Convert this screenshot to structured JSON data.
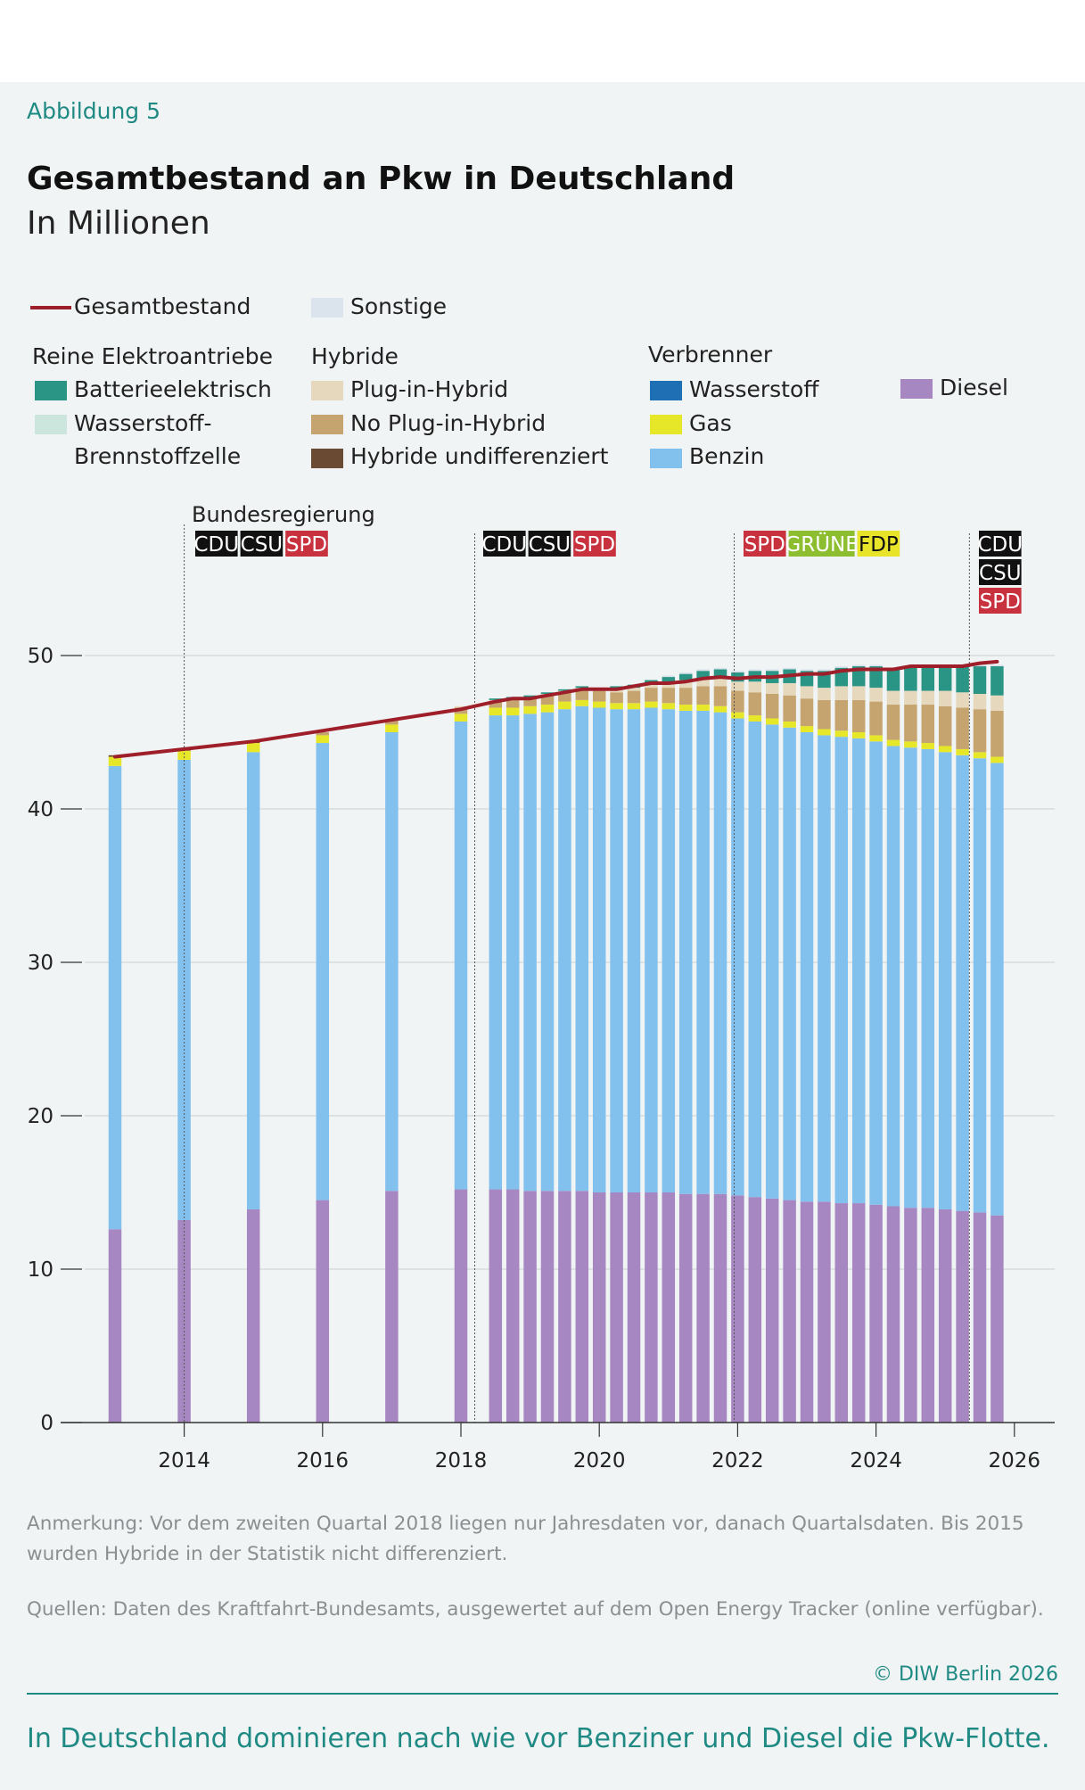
{
  "header": {
    "figure_label": "Abbildung 5",
    "title": "Gesamtbestand an Pkw in Deutschland",
    "subtitle": "In Millionen"
  },
  "legend": {
    "total_label": "Gesamtbestand",
    "other_label": "Sonstige",
    "groups": [
      {
        "title": "Reine Elektroantriebe",
        "items": [
          "Batterieelektrisch",
          "Wasserstoff-",
          "Brennstoffzelle"
        ]
      },
      {
        "title": "Hybride",
        "items": [
          "Plug-in-Hybrid",
          "No Plug-in-Hybrid",
          "Hybride undifferenziert"
        ]
      },
      {
        "title": "Verbrenner",
        "items": [
          "Wasserstoff",
          "Gas",
          "Benzin"
        ]
      },
      {
        "title": "",
        "items": [
          "Diesel"
        ]
      }
    ]
  },
  "colors": {
    "total": "#9e1f2a",
    "sonstige": "#dbe3ec",
    "batterie": "#2a9485",
    "brennstoff": "#cde6dd",
    "plugin": "#e6d8bd",
    "noplugin": "#c6a46f",
    "hybrid_undiff": "#6b4a33",
    "wasserstoff": "#1f6fb5",
    "gas": "#e7e72a",
    "benzin": "#82c0ee",
    "diesel": "#a787c1",
    "party_black": "#111111",
    "party_red": "#c8323e",
    "party_green": "#8cbe2f",
    "party_yellow": "#e8e42a"
  },
  "government": {
    "title": "Bundesregierung",
    "periods": [
      {
        "parties": [
          "CDU",
          "CSU",
          "SPD"
        ]
      },
      {
        "parties": [
          "CDU",
          "CSU",
          "SPD"
        ]
      },
      {
        "parties": [
          "SPD",
          "GRÜNE",
          "FDP"
        ]
      },
      {
        "parties": [
          "CDU",
          "CSU",
          "SPD"
        ]
      }
    ]
  },
  "chart_data": {
    "type": "bar",
    "stacked": true,
    "title": "Gesamtbestand an Pkw in Deutschland",
    "ylabel": "In Millionen",
    "ylim": [
      0,
      50
    ],
    "yticks": [
      0,
      10,
      20,
      30,
      40,
      50
    ],
    "xlim": [
      2012.8,
      2026.4
    ],
    "xticks": [
      2014,
      2016,
      2018,
      2020,
      2022,
      2024,
      2026
    ],
    "government_changes": [
      2014.0,
      2018.2,
      2021.95,
      2025.35
    ],
    "series_order": [
      "diesel",
      "benzin",
      "gas",
      "wasserstoff",
      "hybrid_undiff",
      "noplugin",
      "plugin",
      "brennstoff",
      "batterie",
      "sonstige"
    ],
    "x": [
      2013.0,
      2014.0,
      2015.0,
      2016.0,
      2017.0,
      2018.0,
      2018.5,
      2018.75,
      2019.0,
      2019.25,
      2019.5,
      2019.75,
      2020.0,
      2020.25,
      2020.5,
      2020.75,
      2021.0,
      2021.25,
      2021.5,
      2021.75,
      2022.0,
      2022.25,
      2022.5,
      2022.75,
      2023.0,
      2023.25,
      2023.5,
      2023.75,
      2024.0,
      2024.25,
      2024.5,
      2024.75,
      2025.0,
      2025.25,
      2025.5,
      2025.75
    ],
    "series": [
      {
        "key": "diesel",
        "name": "Diesel",
        "values": [
          12.6,
          13.2,
          13.9,
          14.5,
          15.1,
          15.2,
          15.2,
          15.2,
          15.1,
          15.1,
          15.1,
          15.1,
          15.0,
          15.0,
          15.0,
          15.0,
          15.0,
          14.9,
          14.9,
          14.9,
          14.8,
          14.7,
          14.6,
          14.5,
          14.4,
          14.4,
          14.3,
          14.3,
          14.2,
          14.1,
          14.0,
          14.0,
          13.9,
          13.8,
          13.7,
          13.5
        ]
      },
      {
        "key": "benzin",
        "name": "Benzin",
        "values": [
          30.2,
          30.0,
          29.8,
          29.8,
          29.9,
          30.5,
          30.9,
          30.9,
          31.1,
          31.2,
          31.4,
          31.6,
          31.6,
          31.5,
          31.5,
          31.6,
          31.5,
          31.5,
          31.5,
          31.4,
          31.1,
          31.0,
          30.9,
          30.8,
          30.6,
          30.4,
          30.4,
          30.3,
          30.2,
          30.0,
          30.0,
          29.9,
          29.8,
          29.7,
          29.6,
          29.5
        ]
      },
      {
        "key": "gas",
        "name": "Gas",
        "values": [
          0.6,
          0.6,
          0.6,
          0.5,
          0.5,
          0.5,
          0.5,
          0.5,
          0.5,
          0.5,
          0.5,
          0.4,
          0.4,
          0.4,
          0.4,
          0.4,
          0.4,
          0.4,
          0.4,
          0.4,
          0.4,
          0.4,
          0.4,
          0.4,
          0.4,
          0.4,
          0.4,
          0.4,
          0.4,
          0.4,
          0.4,
          0.4,
          0.4,
          0.4,
          0.4,
          0.4
        ]
      },
      {
        "key": "wasserstoff",
        "name": "Wasserstoff",
        "values": [
          0,
          0,
          0,
          0,
          0,
          0,
          0,
          0,
          0,
          0,
          0,
          0,
          0,
          0,
          0,
          0,
          0,
          0,
          0,
          0,
          0,
          0,
          0,
          0,
          0,
          0,
          0,
          0,
          0,
          0,
          0,
          0,
          0,
          0,
          0,
          0
        ]
      },
      {
        "key": "hybrid_undiff",
        "name": "Hybride undifferenziert",
        "values": [
          0.1,
          0.1,
          0.1,
          0,
          0,
          0,
          0,
          0,
          0,
          0,
          0,
          0,
          0,
          0,
          0,
          0,
          0,
          0,
          0,
          0,
          0,
          0,
          0,
          0,
          0,
          0,
          0,
          0,
          0,
          0,
          0,
          0,
          0,
          0,
          0,
          0
        ]
      },
      {
        "key": "noplugin",
        "name": "No Plug-in-Hybrid",
        "values": [
          0,
          0,
          0,
          0.2,
          0.3,
          0.4,
          0.4,
          0.5,
          0.5,
          0.6,
          0.6,
          0.7,
          0.7,
          0.7,
          0.8,
          0.9,
          1.0,
          1.1,
          1.2,
          1.3,
          1.4,
          1.5,
          1.6,
          1.7,
          1.8,
          1.9,
          2.0,
          2.1,
          2.2,
          2.3,
          2.4,
          2.5,
          2.6,
          2.7,
          2.8,
          3.0
        ]
      },
      {
        "key": "plugin",
        "name": "Plug-in-Hybrid",
        "values": [
          0,
          0,
          0,
          0,
          0,
          0.1,
          0.1,
          0.1,
          0.1,
          0.1,
          0.1,
          0.1,
          0.1,
          0.2,
          0.2,
          0.3,
          0.4,
          0.5,
          0.5,
          0.6,
          0.6,
          0.7,
          0.7,
          0.8,
          0.8,
          0.8,
          0.9,
          0.9,
          0.9,
          0.9,
          0.9,
          0.9,
          1.0,
          1.0,
          1.0,
          1.0
        ]
      },
      {
        "key": "brennstoff",
        "name": "Wasserstoff-Brennstoffzelle",
        "values": [
          0,
          0,
          0,
          0,
          0,
          0,
          0,
          0,
          0,
          0,
          0,
          0,
          0,
          0,
          0,
          0,
          0,
          0,
          0,
          0,
          0,
          0,
          0,
          0,
          0,
          0,
          0,
          0,
          0,
          0,
          0,
          0,
          0,
          0,
          0,
          0
        ]
      },
      {
        "key": "batterie",
        "name": "Batterieelektrisch",
        "values": [
          0,
          0,
          0,
          0,
          0,
          0,
          0.1,
          0.1,
          0.1,
          0.1,
          0.1,
          0.1,
          0.1,
          0.2,
          0.2,
          0.2,
          0.3,
          0.4,
          0.5,
          0.5,
          0.6,
          0.7,
          0.8,
          0.9,
          1.0,
          1.1,
          1.2,
          1.3,
          1.4,
          1.4,
          1.5,
          1.6,
          1.6,
          1.7,
          1.8,
          1.9
        ]
      },
      {
        "key": "sonstige",
        "name": "Sonstige",
        "values": [
          0,
          0,
          0,
          0,
          0,
          0,
          0,
          0,
          0,
          0,
          0,
          0,
          0,
          0,
          0,
          0,
          0.1,
          0.1,
          0.1,
          0.1,
          0.1,
          0.1,
          0.1,
          0.1,
          0.1,
          0.1,
          0.1,
          0.1,
          0.1,
          0.1,
          0.1,
          0.1,
          0.1,
          0.1,
          0.1,
          0.1
        ]
      }
    ],
    "total": {
      "name": "Gesamtbestand",
      "values": [
        43.4,
        43.9,
        44.4,
        45.1,
        45.8,
        46.5,
        47.0,
        47.2,
        47.2,
        47.4,
        47.6,
        47.8,
        47.8,
        47.8,
        48.0,
        48.2,
        48.2,
        48.3,
        48.5,
        48.6,
        48.5,
        48.6,
        48.6,
        48.7,
        48.8,
        48.8,
        49.0,
        49.1,
        49.1,
        49.1,
        49.3,
        49.3,
        49.3,
        49.3,
        49.5,
        49.6
      ]
    }
  },
  "notes": {
    "anmerkung": "Anmerkung: Vor dem zweiten Quartal 2018 liegen nur Jahresdaten vor, danach Quartalsdaten. Bis 2015 wurden Hybride in der Statistik nicht differenziert.",
    "quellen": "Quellen: Daten des Kraftfahrt-Bundesamts, ausgewertet auf dem Open Energy Tracker (online verfügbar)."
  },
  "footer": {
    "copyright": "© DIW Berlin 2026",
    "caption": "In Deutschland dominieren nach wie vor Benziner und Diesel die Pkw-Flotte."
  }
}
